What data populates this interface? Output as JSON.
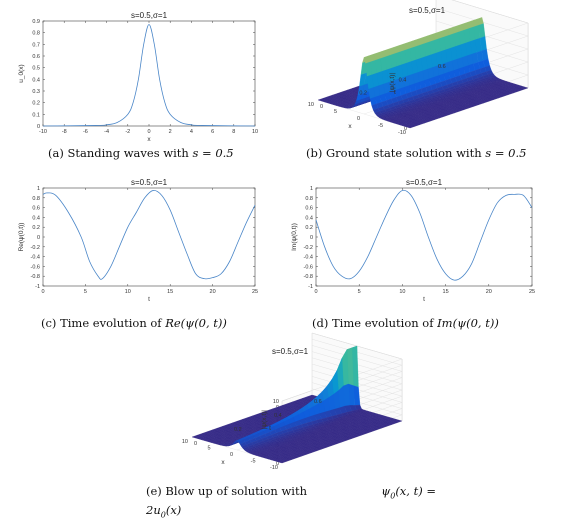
{
  "captions": {
    "a": {
      "pre": "(a) Standing waves with ",
      "math": "s = 0.5"
    },
    "b": {
      "pre": "(b) Ground state solution with ",
      "math": "s = 0.5"
    },
    "c": {
      "pre": "(c) Time evolution of ",
      "math": "Re(ψ(0, t))"
    },
    "d": {
      "pre": "(d) Time evolution of ",
      "math": "Im(ψ(0, t))"
    },
    "e": {
      "line1_pre": "(e) Blow up of solution with ",
      "line1_math": "ψ",
      "line1_sub": "0",
      "line1_math2": "(x, t) =",
      "line2_math": "2u",
      "line2_sub": "0",
      "line2_math2": "(x)"
    }
  },
  "chart_data": [
    {
      "id": "a",
      "type": "line",
      "title": "s=0.5,σ=1",
      "xlabel": "x",
      "ylabel": "u_0(x)",
      "xlim": [
        -10,
        10
      ],
      "ylim": [
        0,
        0.9
      ],
      "xticks": [
        "-10",
        "-8",
        "-6",
        "-4",
        "-2",
        "0",
        "2",
        "4",
        "6",
        "8",
        "10"
      ],
      "yticks": [
        "0",
        "0.1",
        "0.2",
        "0.3",
        "0.4",
        "0.5",
        "0.6",
        "0.7",
        "0.8",
        "0.9"
      ],
      "series": [
        {
          "x": [
            -10,
            -5,
            -4,
            -3,
            -2,
            -1.5,
            -1,
            -0.5,
            0,
            0.5,
            1,
            1.5,
            2,
            3,
            4,
            5,
            10
          ],
          "y": [
            0,
            0.005,
            0.01,
            0.03,
            0.1,
            0.2,
            0.4,
            0.7,
            0.87,
            0.7,
            0.4,
            0.2,
            0.1,
            0.03,
            0.01,
            0.005,
            0
          ]
        }
      ],
      "color": "#4a86c8"
    },
    {
      "id": "b",
      "type": "surface",
      "title": "s=0.5,σ=1",
      "xlabel": "x",
      "ylabel": "t",
      "zlabel": "|ψ(x,t)|",
      "xlim": [
        -10,
        10
      ],
      "tlim": [
        0,
        0.6
      ],
      "zlim": [
        0,
        1
      ],
      "xticks": [
        "10",
        "5",
        "0",
        "-5",
        "-10"
      ],
      "tticks": [
        "0",
        "0.2",
        "0.4",
        "0.6"
      ],
      "zticks": [
        "0",
        "0.2",
        "0.4",
        "0.6",
        "0.8",
        "1"
      ],
      "peak": 0.87
    },
    {
      "id": "c",
      "type": "line",
      "title": "s=0.5,σ=1",
      "xlabel": "t",
      "ylabel": "Re(ψ(0,t))",
      "xlim": [
        0,
        25
      ],
      "ylim": [
        -1,
        1
      ],
      "xticks": [
        "0",
        "5",
        "10",
        "15",
        "20",
        "25"
      ],
      "yticks": [
        "-1",
        "-0.8",
        "-0.6",
        "-0.4",
        "-0.2",
        "0",
        "0.2",
        "0.4",
        "0.6",
        "0.8",
        "1"
      ],
      "series": [
        {
          "x": [
            0,
            0.5,
            1.5,
            3,
            4.5,
            5.5,
            6.5,
            7,
            8,
            9,
            10,
            11,
            12,
            13,
            14,
            15,
            16,
            17,
            18,
            19,
            20,
            21,
            22,
            23,
            24,
            25
          ],
          "y": [
            0.87,
            0.9,
            0.85,
            0.5,
            0,
            -0.5,
            -0.8,
            -0.85,
            -0.6,
            -0.2,
            0.2,
            0.5,
            0.8,
            0.95,
            0.85,
            0.55,
            0.1,
            -0.35,
            -0.75,
            -0.85,
            -0.83,
            -0.75,
            -0.5,
            -0.1,
            0.3,
            0.65
          ]
        }
      ],
      "color": "#4a86c8"
    },
    {
      "id": "d",
      "type": "line",
      "title": "s=0.5,σ=1",
      "xlabel": "t",
      "ylabel": "Im(ψ(0,t))",
      "xlim": [
        0,
        25
      ],
      "ylim": [
        -1,
        1
      ],
      "xticks": [
        "0",
        "5",
        "10",
        "15",
        "20",
        "25"
      ],
      "yticks": [
        "-1",
        "-0.8",
        "-0.6",
        "-0.4",
        "-0.2",
        "0",
        "0.2",
        "0.4",
        "0.6",
        "0.8",
        "1"
      ],
      "series": [
        {
          "x": [
            0,
            1,
            2,
            3,
            4,
            5,
            6,
            7,
            8,
            9,
            10,
            11,
            12,
            13,
            14,
            15,
            16,
            17,
            18,
            19,
            20,
            21,
            22,
            23,
            24,
            25
          ],
          "y": [
            0.35,
            -0.2,
            -0.6,
            -0.8,
            -0.85,
            -0.7,
            -0.4,
            0,
            0.4,
            0.75,
            0.95,
            0.85,
            0.5,
            0,
            -0.45,
            -0.75,
            -0.88,
            -0.8,
            -0.55,
            -0.1,
            0.35,
            0.7,
            0.85,
            0.87,
            0.85,
            0.6
          ]
        }
      ],
      "color": "#4a86c8"
    },
    {
      "id": "e",
      "type": "surface",
      "title": "s=0.5,σ=1",
      "xlabel": "x",
      "ylabel": "t",
      "zlabel": "|ψ(x,t)|",
      "xlim": [
        -10,
        10
      ],
      "tlim": [
        0,
        0.6
      ],
      "zlim": [
        0,
        10
      ],
      "xticks": [
        "10",
        "5",
        "0",
        "-5",
        "-10"
      ],
      "tticks": [
        "0",
        "0.2",
        "0.4",
        "0.6"
      ],
      "zticks": [
        "0",
        "1",
        "2",
        "3",
        "4",
        "5",
        "6",
        "7",
        "8",
        "9",
        "10"
      ]
    }
  ]
}
